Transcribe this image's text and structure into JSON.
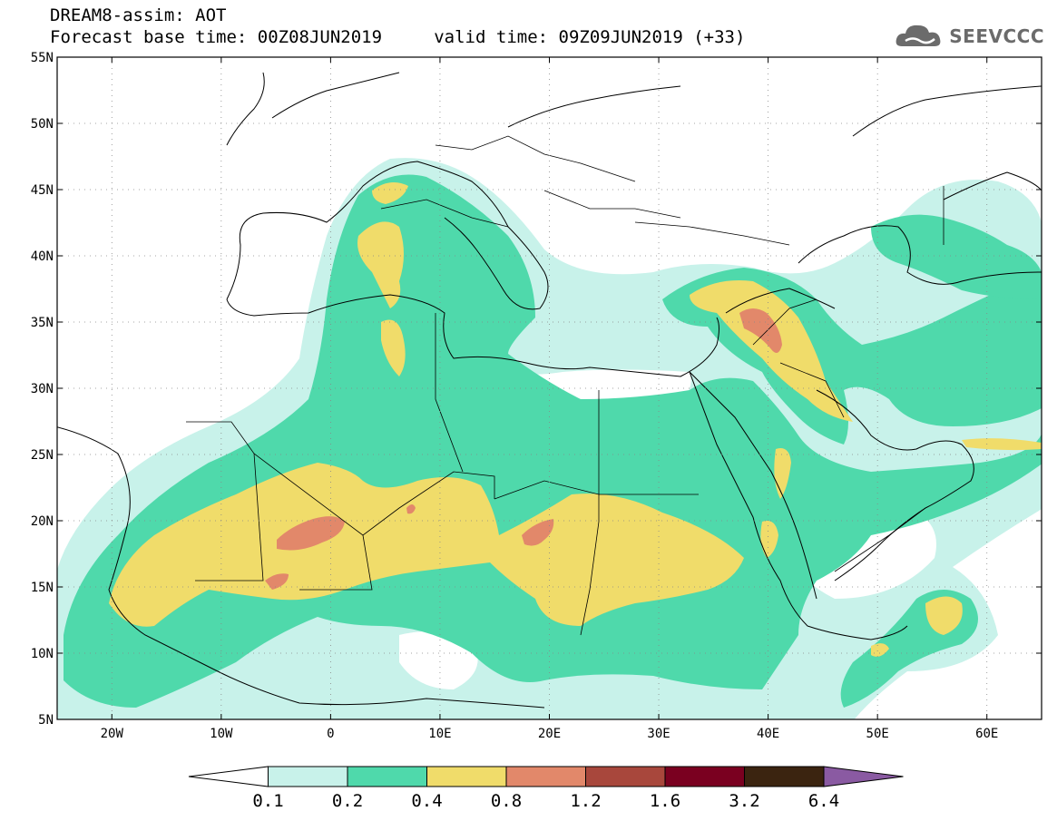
{
  "header": {
    "title_line1": "DREAM8-assim: AOT",
    "title_line2": "Forecast base time: 00Z08JUN2019     valid time: 09Z09JUN2019 (+33)"
  },
  "logo": {
    "icon": "cloud-logo-icon",
    "text": "SEEVCCC"
  },
  "map": {
    "lat_labels": [
      "55N",
      "50N",
      "45N",
      "40N",
      "35N",
      "30N",
      "25N",
      "20N",
      "15N",
      "10N",
      "5N"
    ],
    "lon_labels": [
      "20W",
      "10W",
      "0",
      "10E",
      "20E",
      "30E",
      "40E",
      "50E",
      "60E"
    ],
    "lon_range": [
      -25,
      65
    ],
    "lat_range": [
      5,
      55
    ],
    "grid": "dotted"
  },
  "colorbar": {
    "ticks": [
      "0.1",
      "0.2",
      "0.4",
      "0.8",
      "1.2",
      "1.6",
      "3.2",
      "6.4"
    ],
    "colors": [
      "#ffffff",
      "#c8f2ea",
      "#4fd9ab",
      "#f0dc6a",
      "#e2886a",
      "#a8473c",
      "#7a0020",
      "#3b2410",
      "#8a5aa2"
    ]
  },
  "levels": {
    "l1": "#c8f2ea",
    "l2": "#4fd9ab",
    "l3": "#f0dc6a",
    "l4": "#e2886a"
  }
}
